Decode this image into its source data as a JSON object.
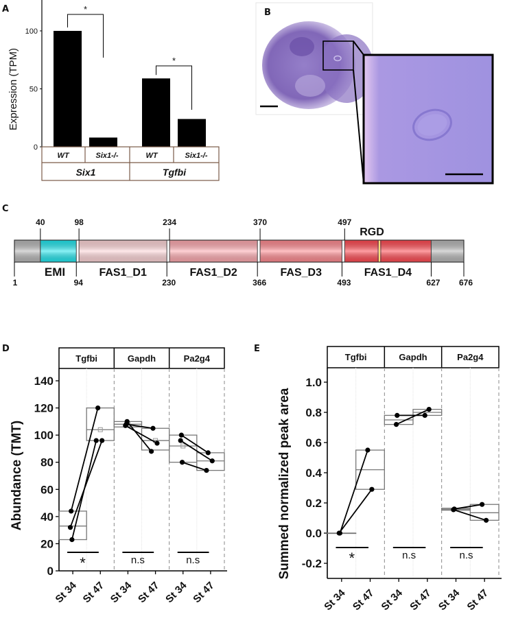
{
  "panels": {
    "A": {
      "letter": "A"
    },
    "B": {
      "letter": "B"
    },
    "C": {
      "letter": "C"
    },
    "D": {
      "letter": "D"
    },
    "E": {
      "letter": "E"
    }
  },
  "image_panel": {
    "description": "Whole-mount in situ hybridization of embryo head (purple staining) with boxed region enlarged in inset showing ring-shaped structure",
    "scale_bars": 2
  },
  "domain_map": {
    "total_length": 676,
    "motif_label": "RGD",
    "top_ticks": [
      "40",
      "98",
      "234",
      "370",
      "497"
    ],
    "bottom_ticks": [
      "1",
      "94",
      "230",
      "366",
      "493",
      "627",
      "676"
    ],
    "domains": [
      {
        "name": "",
        "start": 1,
        "end": 40,
        "color": "#b8b8b8"
      },
      {
        "name": "EMI",
        "start": 40,
        "end": 94,
        "color": "#22e6ee"
      },
      {
        "name": "FAS1_D1",
        "start": 98,
        "end": 230,
        "color": "#ffd6d8"
      },
      {
        "name": "FAS1_D2",
        "start": 234,
        "end": 366,
        "color": "#ffaab0"
      },
      {
        "name": "FAS_D3",
        "start": 370,
        "end": 493,
        "color": "#ff8a90"
      },
      {
        "name": "FAS1_D4",
        "start": 497,
        "end": 627,
        "color": "#ff4a52"
      },
      {
        "name": "",
        "start": 627,
        "end": 676,
        "color": "#b8b8b8"
      }
    ]
  },
  "chart_data": [
    {
      "id": "A",
      "type": "bar",
      "ylabel": "Expression (TPM)",
      "ylim": [
        0,
        120
      ],
      "yticks": [
        "0",
        "50",
        "100"
      ],
      "categories": [
        "WT",
        "Six1-/-",
        "WT",
        "Six1-/-"
      ],
      "groups": [
        "Six1",
        "Tgfbi"
      ],
      "values": [
        100,
        8,
        59,
        24
      ],
      "significance": [
        {
          "pair": [
            0,
            1
          ],
          "label": "*"
        },
        {
          "pair": [
            2,
            3
          ],
          "label": "*"
        }
      ],
      "bar_color": "#000000"
    },
    {
      "id": "D",
      "type": "box-paired",
      "ylabel": "Abundance (TMT)",
      "ylim": [
        0,
        150
      ],
      "yticks": [
        "0",
        "20",
        "40",
        "60",
        "80",
        "100",
        "120",
        "140"
      ],
      "xtick_labels": [
        "St 34",
        "St 47"
      ],
      "facets": [
        {
          "name": "Tgfbi",
          "sig": "*",
          "st34": [
            44,
            32,
            23
          ],
          "st47": [
            120,
            96,
            96
          ],
          "box34": {
            "low": 23,
            "mid": 33,
            "high": 44,
            "mean": null
          },
          "box47": {
            "low": 96,
            "mid": 104,
            "high": 120,
            "mean": 104
          }
        },
        {
          "name": "Gapdh",
          "sig": "n.s",
          "st34": [
            108,
            107,
            110
          ],
          "st47": [
            105,
            94,
            88
          ],
          "box34": {
            "low": 106,
            "mid": 108,
            "high": 110,
            "mean": 108
          },
          "box47": {
            "low": 89,
            "mid": 96,
            "high": 105,
            "mean": 96
          }
        },
        {
          "name": "Pa2g4",
          "sig": "n.s",
          "st34": [
            100,
            96,
            80
          ],
          "st47": [
            87,
            81,
            74
          ],
          "box34": {
            "low": 80,
            "mid": 92,
            "high": 100,
            "mean": 92
          },
          "box47": {
            "low": 74,
            "mid": 81,
            "high": 87,
            "mean": null
          }
        }
      ]
    },
    {
      "id": "E",
      "type": "box-paired",
      "ylabel": "Summed normalized peak area",
      "ylim": [
        -0.3,
        1.1
      ],
      "yticks": [
        "-0.2",
        "0.0",
        "0.2",
        "0.4",
        "0.6",
        "0.8",
        "1.0"
      ],
      "xtick_labels": [
        "St 34",
        "St 47"
      ],
      "facets": [
        {
          "name": "Tgfbi",
          "sig": "*",
          "st34": [
            0.0,
            0.0
          ],
          "st47": [
            0.55,
            0.29
          ],
          "box34": {
            "low": 0.0,
            "mid": 0.0,
            "high": 0.0,
            "mean": null
          },
          "box47": {
            "low": 0.29,
            "mid": 0.42,
            "high": 0.55,
            "mean": null
          }
        },
        {
          "name": "Gapdh",
          "sig": "n.s",
          "st34": [
            0.78,
            0.72
          ],
          "st47": [
            0.78,
            0.82
          ],
          "box34": {
            "low": 0.72,
            "mid": 0.75,
            "high": 0.78,
            "mean": null
          },
          "box47": {
            "low": 0.78,
            "mid": 0.8,
            "high": 0.82,
            "mean": null
          }
        },
        {
          "name": "Pa2g4",
          "sig": "n.s",
          "st34": [
            0.16,
            0.155
          ],
          "st47": [
            0.19,
            0.085
          ],
          "box34": {
            "low": 0.152,
            "mid": 0.158,
            "high": 0.165,
            "mean": null
          },
          "box47": {
            "low": 0.085,
            "mid": 0.135,
            "high": 0.19,
            "mean": null
          }
        }
      ]
    }
  ]
}
